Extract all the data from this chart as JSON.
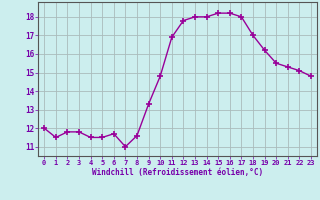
{
  "x": [
    0,
    1,
    2,
    3,
    4,
    5,
    6,
    7,
    8,
    9,
    10,
    11,
    12,
    13,
    14,
    15,
    16,
    17,
    18,
    19,
    20,
    21,
    22,
    23
  ],
  "y": [
    12.0,
    11.5,
    11.8,
    11.8,
    11.5,
    11.5,
    11.7,
    11.0,
    11.6,
    13.3,
    14.8,
    16.9,
    17.8,
    18.0,
    18.0,
    18.2,
    18.2,
    18.0,
    17.0,
    16.2,
    15.5,
    15.3,
    15.1,
    14.8
  ],
  "line_color": "#990099",
  "marker": "+",
  "marker_size": 4,
  "bg_color": "#cceeee",
  "grid_color": "#aabbbb",
  "xlabel": "Windchill (Refroidissement éolien,°C)",
  "xlabel_color": "#7700aa",
  "tick_color": "#7700aa",
  "ylim": [
    10.5,
    18.8
  ],
  "xlim": [
    -0.5,
    23.5
  ],
  "yticks": [
    11,
    12,
    13,
    14,
    15,
    16,
    17,
    18
  ],
  "xticks": [
    0,
    1,
    2,
    3,
    4,
    5,
    6,
    7,
    8,
    9,
    10,
    11,
    12,
    13,
    14,
    15,
    16,
    17,
    18,
    19,
    20,
    21,
    22,
    23
  ],
  "tick_fontsize": 5.0,
  "xlabel_fontsize": 5.5,
  "linewidth": 1.0,
  "spine_color": "#555555"
}
